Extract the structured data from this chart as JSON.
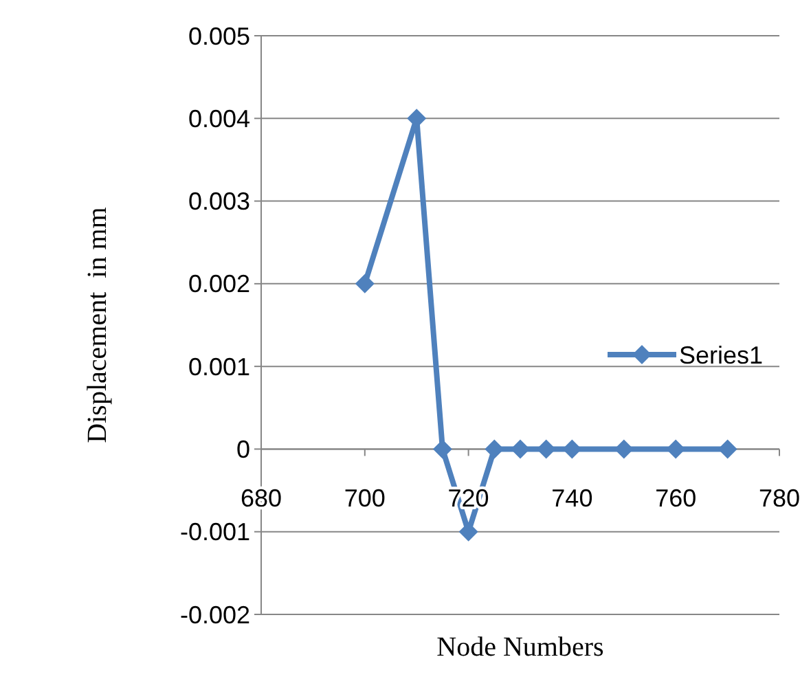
{
  "chart_data": {
    "type": "line",
    "xlabel": "Node Numbers",
    "ylabel": "Displacement  in mm",
    "x": [
      700,
      710,
      715,
      720,
      725,
      730,
      735,
      740,
      750,
      760,
      770
    ],
    "series": [
      {
        "name": "Series1",
        "color": "#4f81bd",
        "values": [
          0.002,
          0.004,
          0,
          -0.001,
          0,
          0,
          0,
          0,
          0,
          0,
          0
        ]
      }
    ],
    "xlim": [
      680,
      780
    ],
    "xticks": [
      680,
      700,
      720,
      740,
      760,
      780
    ],
    "ylim": [
      -0.002,
      0.005
    ],
    "yticks": [
      -0.002,
      -0.001,
      0,
      0.001,
      0.002,
      0.003,
      0.004,
      0.005
    ],
    "grid": "y",
    "legend": "right",
    "marker": "diamond",
    "line_style": "solid"
  }
}
